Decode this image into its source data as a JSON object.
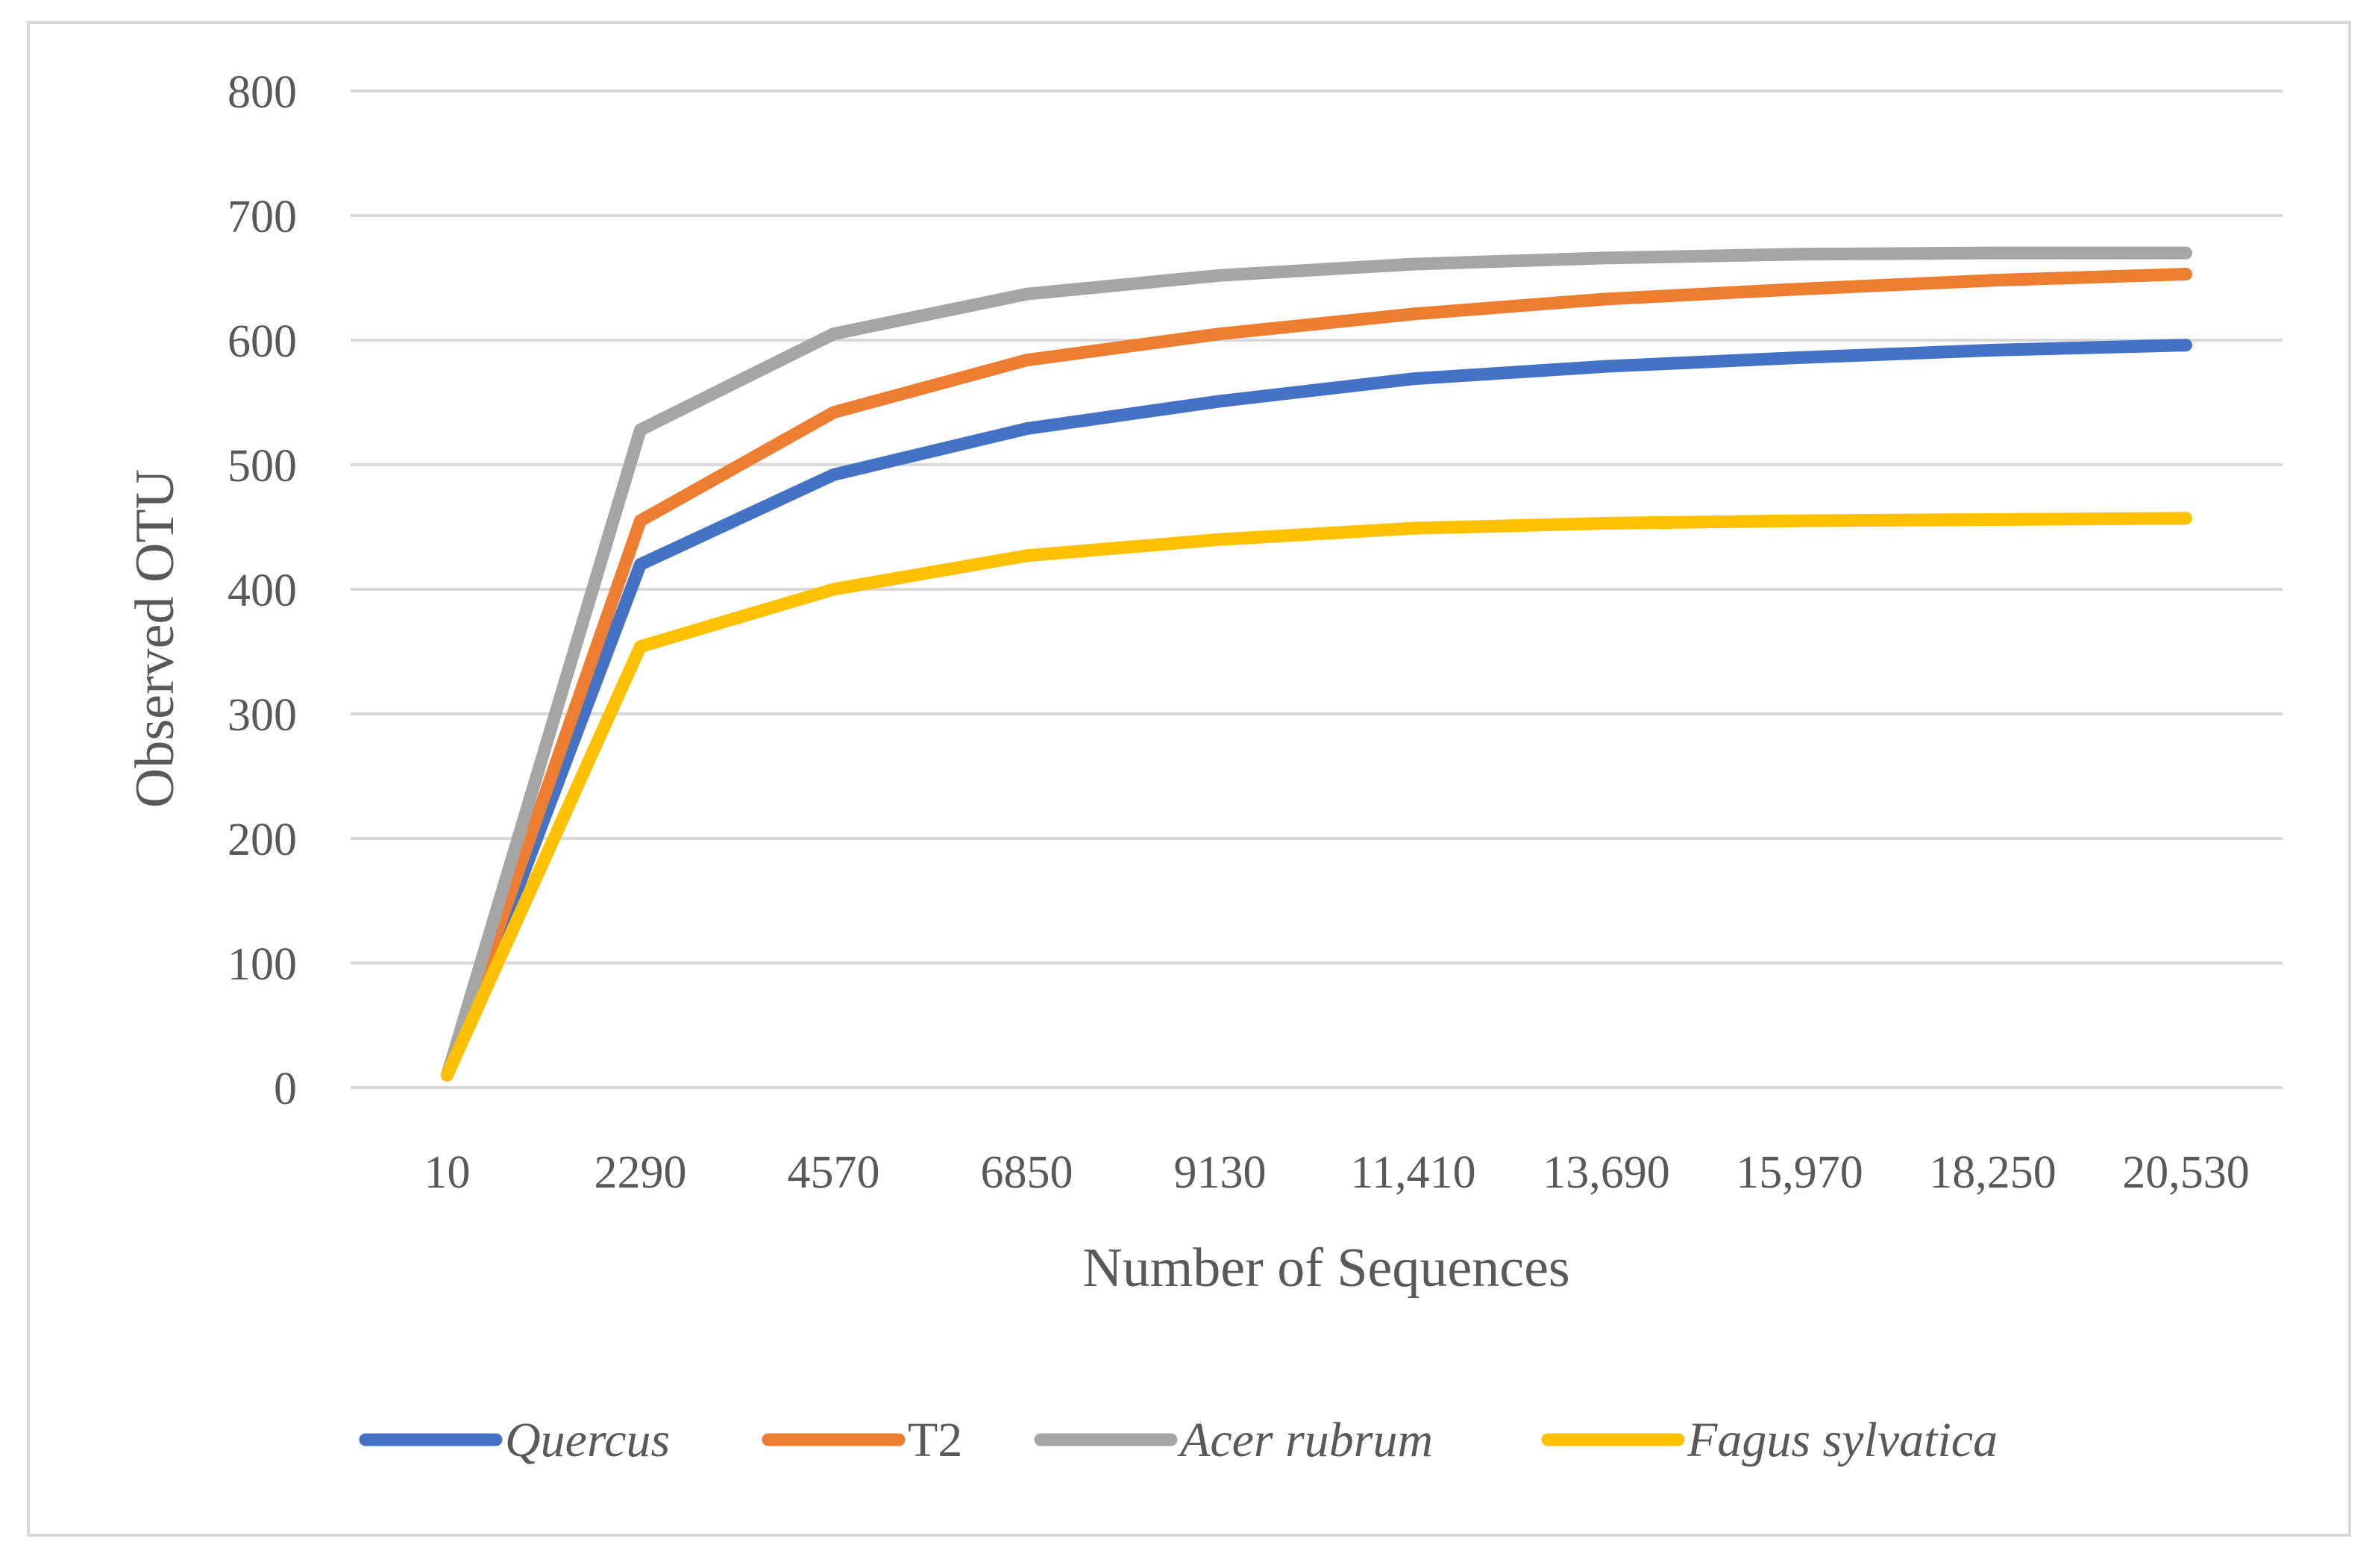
{
  "chart_data": {
    "type": "line",
    "title": "",
    "xlabel": "Number of Sequences",
    "ylabel": "Observed OTU",
    "x": [
      "10",
      "2290",
      "4570",
      "6850",
      "9130",
      "11,410",
      "13,690",
      "15,970",
      "18,250",
      "20,530"
    ],
    "ylim": [
      0,
      800
    ],
    "yticks": [
      "0",
      "100",
      "200",
      "300",
      "400",
      "500",
      "600",
      "700",
      "800"
    ],
    "grid": true,
    "legend_position": "bottom",
    "series": [
      {
        "name": "Quercus",
        "italic": true,
        "color": "#4472C4",
        "values": [
          10,
          420,
          492,
          529,
          551,
          569,
          579,
          586,
          592,
          596
        ]
      },
      {
        "name": "T2",
        "italic": false,
        "color": "#ED7D31",
        "values": [
          10,
          455,
          542,
          584,
          605,
          621,
          633,
          641,
          648,
          653
        ]
      },
      {
        "name": "Acer rubrum",
        "italic": true,
        "color": "#A5A5A5",
        "values": [
          10,
          528,
          605,
          637,
          652,
          661,
          666,
          669,
          670,
          670
        ]
      },
      {
        "name": "Fagus sylvatica",
        "italic": true,
        "color": "#FFC000",
        "values": [
          10,
          354,
          400,
          427,
          440,
          449,
          453,
          455,
          456,
          457
        ]
      }
    ]
  }
}
